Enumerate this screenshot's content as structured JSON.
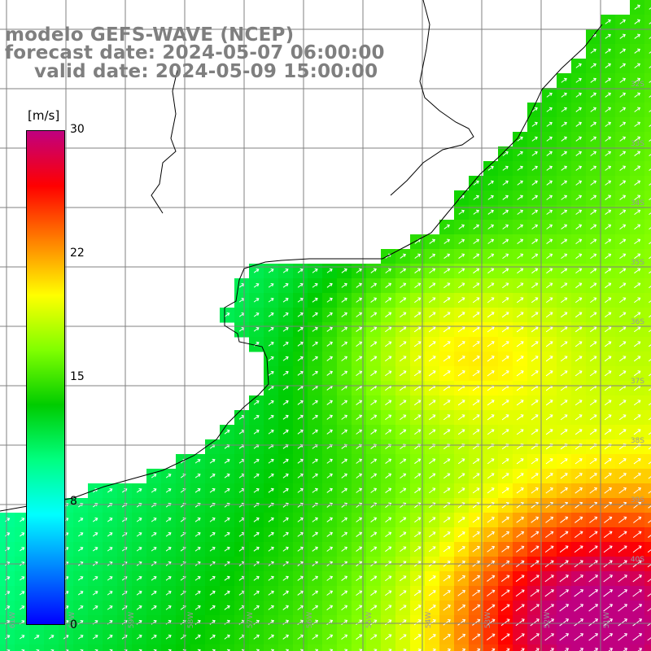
{
  "header": {
    "model": "modelo GEFS-WAVE (NCEP)",
    "forecast": "forecast date: 2024-05-07 06:00:00",
    "valid": "valid date: 2024-05-09 15:00:00"
  },
  "colorbar": {
    "unit": "[m/s]",
    "ticks": [
      "30",
      "22",
      "15",
      "8",
      "0"
    ],
    "colors": [
      "#0000ff",
      "#0080ff",
      "#00ffff",
      "#00ff80",
      "#00cc00",
      "#80ff00",
      "#ffff00",
      "#ff8000",
      "#ff0000",
      "#c00080"
    ]
  },
  "map": {
    "lat_labels": [
      "32S",
      "33S",
      "34S",
      "35S",
      "36S",
      "37S",
      "38S",
      "39S",
      "40S"
    ],
    "lon_labels": [
      "61W",
      "60W",
      "59W",
      "58W",
      "57W",
      "56W",
      "55W",
      "54W",
      "53W",
      "52W",
      "51W"
    ],
    "colors": {
      "land": "#ffffff",
      "coast": "#000000",
      "grid": "#808080",
      "arrow": "#ffffff"
    }
  }
}
